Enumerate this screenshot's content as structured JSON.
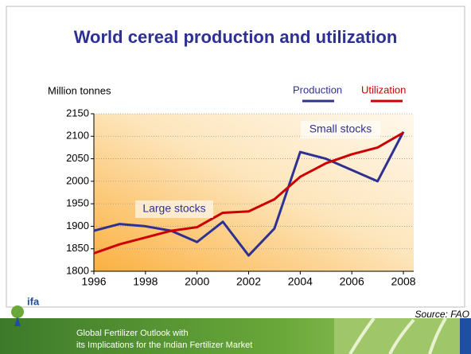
{
  "chart_data": {
    "type": "line",
    "title": "World cereal production and utilization",
    "y_label": "Million tonnes",
    "x": [
      1996,
      1997,
      1998,
      1999,
      2000,
      2001,
      2002,
      2003,
      2004,
      2005,
      2006,
      2007,
      2008
    ],
    "series": [
      {
        "name": "Production",
        "color": "#2e3192",
        "values": [
          1890,
          1905,
          1900,
          1890,
          1865,
          1910,
          1835,
          1895,
          2065,
          2050,
          2025,
          2000,
          2110
        ]
      },
      {
        "name": "Utilization",
        "color": "#cc0000",
        "values": [
          1840,
          1860,
          1875,
          1890,
          1898,
          1930,
          1933,
          1960,
          2010,
          2040,
          2060,
          2075,
          2108
        ]
      }
    ],
    "xlim": [
      1996,
      2008.4
    ],
    "ylim": [
      1800,
      2150
    ],
    "xticks": [
      1996,
      1998,
      2000,
      2002,
      2004,
      2006,
      2008
    ],
    "yticks": [
      1800,
      1850,
      1900,
      1950,
      2000,
      2050,
      2100,
      2150
    ],
    "grid": true,
    "annotations": [
      "Large stocks",
      "Small stocks"
    ]
  },
  "source": "Source: FAO",
  "logo": "ifa",
  "footer": [
    "Global Fertilizer Outlook with",
    "its Implications for the Indian Fertilizer Market"
  ]
}
